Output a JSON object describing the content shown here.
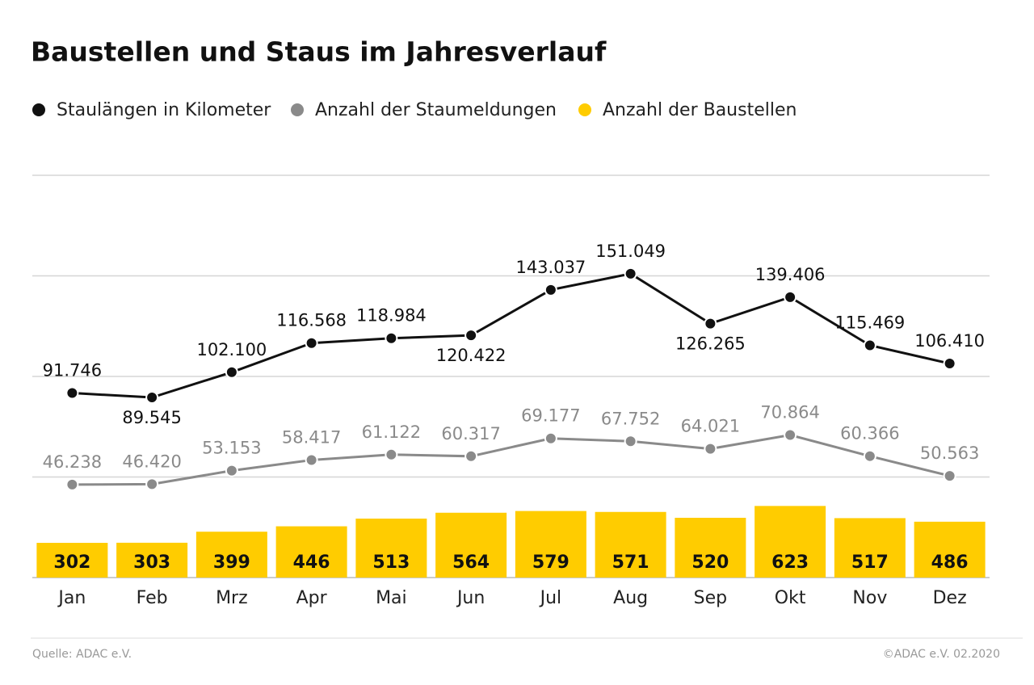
{
  "chart_data": {
    "type": "combo",
    "title": "Baustellen und Staus im Jahresverlauf",
    "categories": [
      "Jan",
      "Feb",
      "Mrz",
      "Apr",
      "Mai",
      "Jun",
      "Jul",
      "Aug",
      "Sep",
      "Okt",
      "Nov",
      "Dez"
    ],
    "series": [
      {
        "name": "Staulängen in Kilometer",
        "type": "line",
        "color": "#111111",
        "values": [
          91746,
          89545,
          102100,
          116568,
          118984,
          120422,
          143037,
          151049,
          126265,
          139406,
          115469,
          106410
        ],
        "value_labels": [
          "91.746",
          "89.545",
          "102.100",
          "116.568",
          "118.984",
          "120.422",
          "143.037",
          "151.049",
          "126.265",
          "139.406",
          "115.469",
          "106.410"
        ]
      },
      {
        "name": "Anzahl der Staumeldungen",
        "type": "line",
        "color": "#8a8a8a",
        "values": [
          46238,
          46420,
          53153,
          58417,
          61122,
          60317,
          69177,
          67752,
          64021,
          70864,
          60366,
          50563
        ],
        "value_labels": [
          "46.238",
          "46.420",
          "53.153",
          "58.417",
          "61.122",
          "60.317",
          "69.177",
          "67.752",
          "64.021",
          "70.864",
          "60.366",
          "50.563"
        ]
      },
      {
        "name": "Anzahl der Baustellen",
        "type": "bar",
        "axis": "y2",
        "color": "#ffcc00",
        "values": [
          302,
          303,
          399,
          446,
          513,
          564,
          579,
          571,
          520,
          623,
          517,
          486
        ]
      }
    ],
    "ylim": [
      0,
      200000
    ],
    "yticks": [
      0,
      50000,
      100000,
      150000,
      200000
    ],
    "y2lim": [
      0,
      3500
    ],
    "grid": true,
    "source": "Quelle: ADAC e.V.",
    "credit": "©ADAC e.V.  02.2020"
  }
}
